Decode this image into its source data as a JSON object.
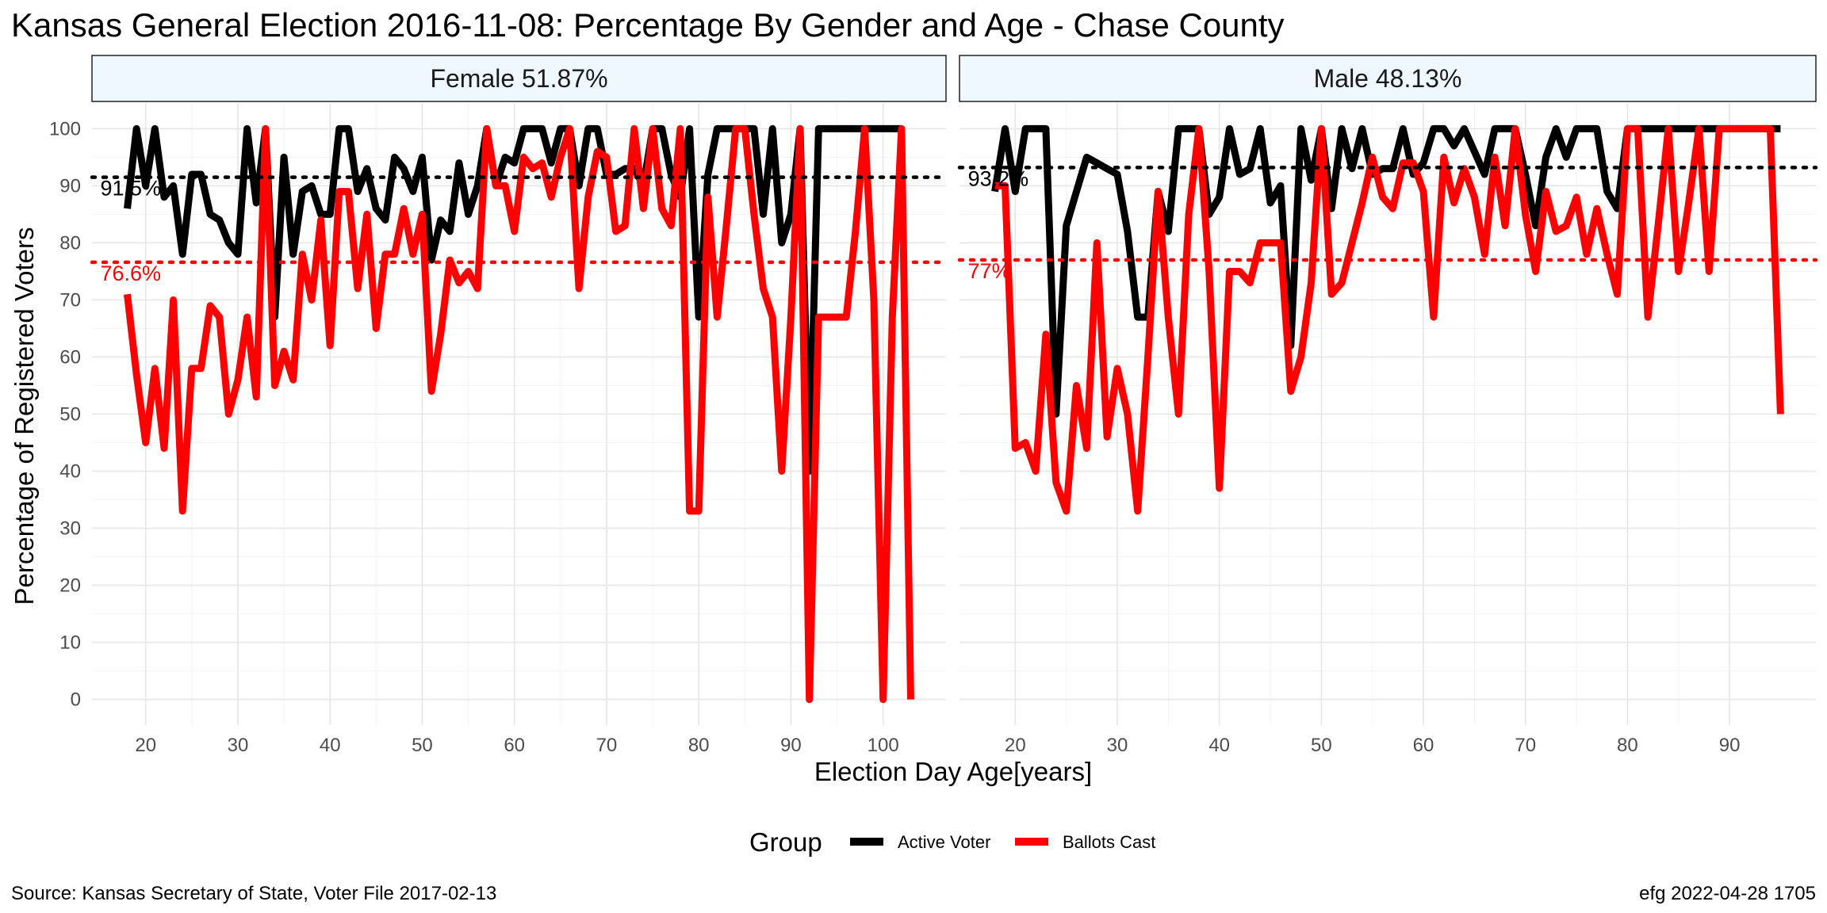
{
  "title": "Kansas General Election 2016-11-08:  Percentage By Gender and Age - Chase County",
  "source": "Source:  Kansas Secretary of State, Voter File  2017-02-13",
  "stamp": "efg 2022-04-28 1705",
  "colors": {
    "active": "#000000",
    "ballots": "#ff0000",
    "strip": "#f0f8ff"
  },
  "chart_data": {
    "type": "line",
    "xlabel": "Election Day Age[years]",
    "ylabel": "Percentage of Registered Voters",
    "ylim": [
      0,
      100
    ],
    "yticks": [
      0,
      10,
      20,
      30,
      40,
      50,
      60,
      70,
      80,
      90,
      100
    ],
    "legend": {
      "title": "Group",
      "position": "bottom",
      "entries": [
        "Active Voter",
        "Ballots Cast"
      ]
    },
    "grid": true,
    "panels": [
      {
        "label": "Female 51.87%",
        "xlim": [
          18,
          103
        ],
        "xticks": [
          20,
          30,
          40,
          50,
          60,
          70,
          80,
          90,
          100
        ],
        "means": {
          "active": 91.5,
          "ballots": 76.6
        },
        "mean_labels": {
          "active": "91.5%",
          "ballots": "76.6%"
        },
        "series": [
          {
            "name": "Active Voter",
            "x": [
              18,
              19,
              20,
              21,
              22,
              23,
              24,
              25,
              26,
              27,
              28,
              29,
              30,
              31,
              32,
              33,
              34,
              35,
              36,
              37,
              38,
              39,
              40,
              41,
              42,
              43,
              44,
              45,
              46,
              47,
              48,
              49,
              50,
              51,
              52,
              53,
              54,
              55,
              56,
              57,
              58,
              59,
              60,
              61,
              62,
              63,
              64,
              65,
              66,
              67,
              68,
              69,
              70,
              71,
              72,
              73,
              74,
              75,
              76,
              77,
              78,
              79,
              80,
              81,
              82,
              83,
              84,
              85,
              86,
              87,
              88,
              89,
              90,
              91,
              92,
              93,
              94,
              95,
              96,
              97,
              98,
              99,
              100,
              101,
              102
            ],
            "y": [
              86,
              100,
              90,
              100,
              88,
              90,
              78,
              92,
              92,
              85,
              84,
              80,
              78,
              100,
              87,
              100,
              67,
              95,
              78,
              89,
              90,
              85,
              85,
              100,
              100,
              89,
              93,
              86,
              84,
              95,
              93,
              89,
              95,
              77,
              84,
              82,
              94,
              85,
              90,
              100,
              90,
              95,
              94,
              100,
              100,
              100,
              94,
              100,
              100,
              90,
              100,
              100,
              92,
              92,
              93,
              93,
              90,
              100,
              100,
              92,
              88,
              100,
              67,
              92,
              100,
              100,
              100,
              100,
              100,
              85,
              100,
              80,
              85,
              100,
              40,
              100,
              100,
              100,
              100,
              100,
              100,
              100,
              100,
              100,
              100
            ]
          },
          {
            "name": "Ballots Cast",
            "x": [
              18,
              19,
              20,
              21,
              22,
              23,
              24,
              25,
              26,
              27,
              28,
              29,
              30,
              31,
              32,
              33,
              34,
              35,
              36,
              37,
              38,
              39,
              40,
              41,
              42,
              43,
              44,
              45,
              46,
              47,
              48,
              49,
              50,
              51,
              52,
              53,
              54,
              55,
              56,
              57,
              58,
              59,
              60,
              61,
              62,
              63,
              64,
              65,
              66,
              67,
              68,
              69,
              70,
              71,
              72,
              73,
              74,
              75,
              76,
              77,
              78,
              79,
              80,
              81,
              82,
              83,
              84,
              85,
              86,
              87,
              88,
              89,
              90,
              91,
              92,
              93,
              94,
              95,
              96,
              97,
              98,
              99,
              100,
              101,
              102,
              103
            ],
            "y": [
              71,
              57,
              45,
              58,
              44,
              70,
              33,
              58,
              58,
              69,
              67,
              50,
              56,
              67,
              53,
              100,
              55,
              61,
              56,
              78,
              70,
              84,
              62,
              89,
              89,
              72,
              85,
              65,
              78,
              78,
              86,
              78,
              85,
              54,
              64,
              77,
              73,
              75,
              72,
              100,
              90,
              90,
              82,
              95,
              93,
              94,
              88,
              95,
              100,
              72,
              88,
              96,
              95,
              82,
              83,
              100,
              86,
              100,
              86,
              83,
              100,
              33,
              33,
              88,
              67,
              83,
              100,
              100,
              85,
              72,
              67,
              40,
              67,
              100,
              0,
              67,
              67,
              67,
              67,
              82,
              100,
              70,
              0,
              67,
              100,
              0
            ]
          }
        ]
      },
      {
        "label": "Male 48.13%",
        "xlim": [
          18,
          95
        ],
        "xticks": [
          20,
          30,
          40,
          50,
          60,
          70,
          80,
          90
        ],
        "means": {
          "active": 93.2,
          "ballots": 77.0
        },
        "mean_labels": {
          "active": "93.2%",
          "ballots": "77%"
        },
        "series": [
          {
            "name": "Active Voter",
            "x": [
              18,
              19,
              20,
              21,
              22,
              23,
              24,
              25,
              26,
              27,
              28,
              29,
              30,
              31,
              32,
              33,
              34,
              35,
              36,
              37,
              38,
              39,
              40,
              41,
              42,
              43,
              44,
              45,
              46,
              47,
              48,
              49,
              50,
              51,
              52,
              53,
              54,
              55,
              56,
              57,
              58,
              59,
              60,
              61,
              62,
              63,
              64,
              65,
              66,
              67,
              68,
              69,
              70,
              71,
              72,
              73,
              74,
              75,
              76,
              77,
              78,
              79,
              80,
              81,
              82,
              83,
              84,
              85,
              86,
              87,
              88,
              89,
              90,
              91,
              92,
              93,
              94,
              95
            ],
            "y": [
              89,
              100,
              89,
              100,
              100,
              100,
              50,
              83,
              89,
              95,
              94,
              93,
              92,
              82,
              67,
              67,
              89,
              82,
              100,
              100,
              100,
              85,
              88,
              100,
              92,
              93,
              100,
              87,
              90,
              62,
              100,
              91,
              100,
              86,
              100,
              93,
              100,
              92,
              93,
              93,
              100,
              92,
              94,
              100,
              100,
              97,
              100,
              96,
              92,
              100,
              100,
              100,
              92,
              83,
              95,
              100,
              95,
              100,
              100,
              100,
              89,
              86,
              100,
              100,
              100,
              100,
              100,
              100,
              100,
              100,
              100,
              100,
              100,
              100,
              100,
              100,
              100,
              100
            ]
          },
          {
            "name": "Ballots Cast",
            "x": [
              18,
              19,
              20,
              21,
              22,
              23,
              24,
              25,
              26,
              27,
              28,
              29,
              30,
              31,
              32,
              33,
              34,
              35,
              36,
              37,
              38,
              39,
              40,
              41,
              42,
              43,
              44,
              45,
              46,
              47,
              48,
              49,
              50,
              51,
              52,
              53,
              54,
              55,
              56,
              57,
              58,
              59,
              60,
              61,
              62,
              63,
              64,
              65,
              66,
              67,
              68,
              69,
              70,
              71,
              72,
              73,
              74,
              75,
              76,
              77,
              78,
              79,
              80,
              81,
              82,
              83,
              84,
              85,
              86,
              87,
              88,
              89,
              90,
              91,
              92,
              93,
              94,
              95
            ],
            "y": [
              90,
              90,
              44,
              45,
              40,
              64,
              38,
              33,
              55,
              44,
              80,
              46,
              58,
              50,
              33,
              60,
              89,
              67,
              50,
              85,
              100,
              75,
              37,
              75,
              75,
              73,
              80,
              80,
              80,
              54,
              60,
              73,
              100,
              71,
              73,
              80,
              87,
              95,
              88,
              86,
              94,
              94,
              89,
              67,
              95,
              87,
              93,
              88,
              78,
              95,
              83,
              100,
              85,
              75,
              89,
              82,
              83,
              88,
              78,
              86,
              78,
              71,
              100,
              100,
              67,
              83,
              100,
              75,
              87,
              100,
              75,
              100,
              100,
              100,
              100,
              100,
              100,
              50
            ]
          }
        ]
      }
    ]
  }
}
